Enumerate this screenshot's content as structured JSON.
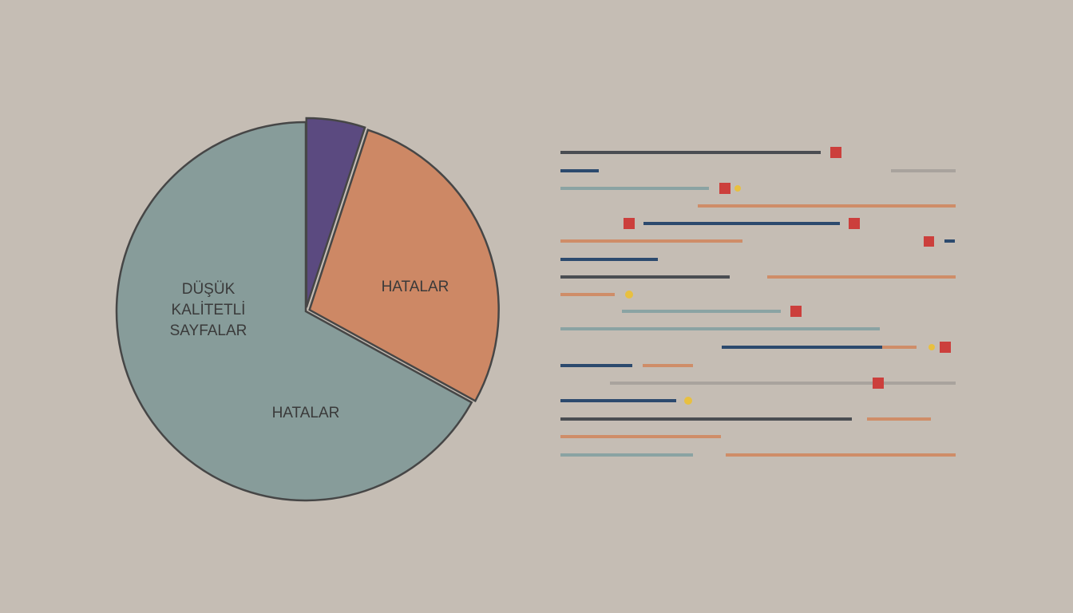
{
  "chart_data": {
    "type": "pie",
    "categories": [
      null,
      "HATALAR",
      "HATALAR"
    ],
    "values": [
      5,
      28,
      67
    ],
    "colors": [
      "#5b4a80",
      "#cd8865",
      "#879c9a"
    ],
    "annotations": [
      {
        "lines": [
          "DÜŞÜK",
          "KALİTETLİ",
          "SAYFALAR"
        ]
      }
    ]
  }
}
